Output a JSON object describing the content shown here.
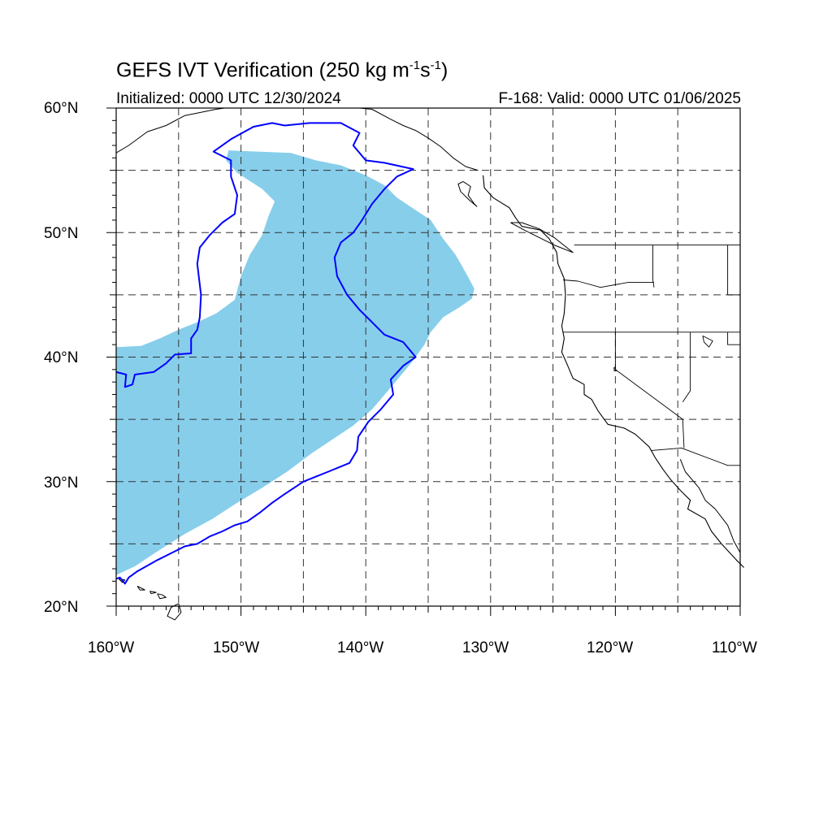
{
  "header": {
    "title_main": "GEFS IVT Verification (250 kg m",
    "title_sup1": "-1",
    "title_mid": "s",
    "title_sup2": "-1",
    "title_end": ")",
    "initialized": "Initialized: 0000 UTC 12/30/2024",
    "valid": "F-168: Valid: 0000 UTC 01/06/2025"
  },
  "axes": {
    "lat_labels": [
      "60°N",
      "50°N",
      "40°N",
      "30°N",
      "20°N"
    ],
    "lon_labels": [
      "160°W",
      "150°W",
      "140°W",
      "130°W",
      "120°W",
      "110°W"
    ]
  },
  "map_extent": {
    "lon_min": -160,
    "lon_max": -110,
    "lat_min": 20,
    "lat_max": 60,
    "grid_step": 5
  },
  "forecast_object": {
    "color": "#87ceeb",
    "outline": [
      [
        -151,
        56.6
      ],
      [
        -146,
        56.4
      ],
      [
        -144,
        55.8
      ],
      [
        -142,
        55.4
      ],
      [
        -140,
        54.6
      ],
      [
        -138.5,
        53.8
      ],
      [
        -137.5,
        52.8
      ],
      [
        -136.3,
        52
      ],
      [
        -134.8,
        51
      ],
      [
        -133.8,
        49.5
      ],
      [
        -132.8,
        48.2
      ],
      [
        -132,
        46.8
      ],
      [
        -131.3,
        45.5
      ],
      [
        -131.5,
        44.7
      ],
      [
        -132.5,
        44
      ],
      [
        -133.8,
        43.2
      ],
      [
        -134.8,
        42
      ],
      [
        -135.3,
        41
      ],
      [
        -136.3,
        39.6
      ],
      [
        -137.8,
        37.8
      ],
      [
        -139.5,
        35.8
      ],
      [
        -141,
        34.5
      ],
      [
        -142.5,
        33.5
      ],
      [
        -144.3,
        32.3
      ],
      [
        -146.3,
        30.8
      ],
      [
        -148.3,
        29.5
      ],
      [
        -150.3,
        28.3
      ],
      [
        -152.3,
        27
      ],
      [
        -154.5,
        25.8
      ],
      [
        -157,
        24.2
      ],
      [
        -158.5,
        23.2
      ],
      [
        -160,
        22.5
      ],
      [
        -160,
        40.8
      ],
      [
        -158,
        40.9
      ],
      [
        -156.5,
        41.5
      ],
      [
        -155,
        42.2
      ],
      [
        -153.5,
        42.8
      ],
      [
        -152,
        43.5
      ],
      [
        -150.5,
        44.6
      ],
      [
        -150,
        46.5
      ],
      [
        -149.3,
        48.2
      ],
      [
        -148.3,
        49.8
      ],
      [
        -147.8,
        51.3
      ],
      [
        -147.3,
        52.5
      ],
      [
        -148.3,
        53.5
      ],
      [
        -150.3,
        54.8
      ],
      [
        -151.2,
        55.8
      ]
    ]
  },
  "observed_object": {
    "color": "#0000ff",
    "outline": [
      [
        -160,
        38.8
      ],
      [
        -159.2,
        38.6
      ],
      [
        -159.3,
        37.6
      ],
      [
        -158.7,
        37.8
      ],
      [
        -158.5,
        38.6
      ],
      [
        -157,
        38.8
      ],
      [
        -156,
        39.5
      ],
      [
        -155.3,
        40.2
      ],
      [
        -154,
        40.3
      ],
      [
        -154,
        41.5
      ],
      [
        -153.5,
        42.2
      ],
      [
        -153.3,
        43.2
      ],
      [
        -153.2,
        45
      ],
      [
        -153.5,
        47.5
      ],
      [
        -153.3,
        48.8
      ],
      [
        -152.5,
        49.8
      ],
      [
        -151.5,
        50.8
      ],
      [
        -150.5,
        51.5
      ],
      [
        -150.3,
        53
      ],
      [
        -150.8,
        54.5
      ],
      [
        -150.8,
        55.8
      ],
      [
        -152.2,
        56.5
      ],
      [
        -150.8,
        57.5
      ],
      [
        -149,
        58.5
      ],
      [
        -147.5,
        58.8
      ],
      [
        -146.5,
        58.6
      ],
      [
        -144.5,
        58.8
      ],
      [
        -142,
        58.8
      ],
      [
        -140.5,
        58
      ],
      [
        -141,
        57
      ],
      [
        -140,
        55.8
      ],
      [
        -138.5,
        55.6
      ],
      [
        -136.2,
        55.1
      ],
      [
        -137.5,
        54.5
      ],
      [
        -138.5,
        53.5
      ],
      [
        -139.5,
        52.3
      ],
      [
        -140.3,
        51
      ],
      [
        -141,
        50
      ],
      [
        -142,
        49.2
      ],
      [
        -142.5,
        48
      ],
      [
        -142.3,
        46.5
      ],
      [
        -141.5,
        45
      ],
      [
        -140.5,
        43.8
      ],
      [
        -139.5,
        42.8
      ],
      [
        -138.5,
        41.8
      ],
      [
        -137,
        41.2
      ],
      [
        -136,
        40
      ],
      [
        -137,
        39.3
      ],
      [
        -138,
        38.2
      ],
      [
        -137.8,
        37
      ],
      [
        -138.8,
        35.8
      ],
      [
        -139.8,
        34.8
      ],
      [
        -140.6,
        33.6
      ],
      [
        -140.7,
        32.5
      ],
      [
        -141.3,
        31.5
      ],
      [
        -143,
        30.8
      ],
      [
        -145,
        30
      ],
      [
        -146.5,
        29
      ],
      [
        -147.5,
        28.3
      ],
      [
        -148.5,
        27.5
      ],
      [
        -149.5,
        26.8
      ],
      [
        -150.5,
        26.5
      ],
      [
        -151.5,
        26
      ],
      [
        -152.5,
        25.6
      ],
      [
        -153.5,
        25
      ],
      [
        -154.5,
        24.8
      ],
      [
        -155.5,
        24.3
      ],
      [
        -156.7,
        23.7
      ],
      [
        -158.3,
        22.8
      ],
      [
        -159,
        22.3
      ],
      [
        -159.3,
        21.8
      ],
      [
        -159.7,
        22.3
      ],
      [
        -160,
        22.2
      ]
    ]
  },
  "land_features": {
    "north_american_coast": [
      [
        -130.6,
        54.6
      ],
      [
        -130.5,
        53.6
      ],
      [
        -129.8,
        52.8
      ],
      [
        -128.5,
        52
      ],
      [
        -128,
        51.2
      ],
      [
        -127.5,
        50.5
      ],
      [
        -126,
        50.2
      ],
      [
        -125.3,
        49.5
      ],
      [
        -124.7,
        48.4
      ],
      [
        -124.6,
        47.5
      ],
      [
        -124.1,
        46.3
      ],
      [
        -124,
        45
      ],
      [
        -124.1,
        43.5
      ],
      [
        -124.3,
        42.5
      ],
      [
        -124.1,
        41.5
      ],
      [
        -124.3,
        40.4
      ],
      [
        -123.9,
        39.5
      ],
      [
        -123.4,
        38.3
      ],
      [
        -122.5,
        37.8
      ],
      [
        -122.5,
        37
      ],
      [
        -121.9,
        36.6
      ],
      [
        -121.4,
        35.7
      ],
      [
        -120.6,
        34.6
      ],
      [
        -119.3,
        34.3
      ],
      [
        -118.4,
        33.8
      ],
      [
        -117.3,
        32.8
      ],
      [
        -116.8,
        31.9
      ],
      [
        -116.2,
        31
      ],
      [
        -115.6,
        30.2
      ],
      [
        -114.8,
        29.3
      ],
      [
        -114,
        28.5
      ],
      [
        -114.2,
        27.8
      ],
      [
        -112.8,
        27
      ],
      [
        -112.3,
        26
      ],
      [
        -111.5,
        25
      ],
      [
        -110.3,
        23.7
      ],
      [
        -109.7,
        23.1
      ]
    ],
    "gulf_of_california_coast": [
      [
        -114.8,
        31.8
      ],
      [
        -114.4,
        30.8
      ],
      [
        -113.3,
        29.5
      ],
      [
        -112.8,
        28.5
      ],
      [
        -112,
        27.8
      ],
      [
        -111,
        26.5
      ],
      [
        -110.5,
        25.2
      ],
      [
        -110,
        24.3
      ]
    ],
    "alaska_coast": [
      [
        -160,
        56.4
      ],
      [
        -159,
        57
      ],
      [
        -157.5,
        58.1
      ],
      [
        -156,
        58.6
      ],
      [
        -154.5,
        59.4
      ],
      [
        -153,
        59.7
      ],
      [
        -152,
        59.9
      ],
      [
        -151.3,
        60
      ]
    ],
    "alaska_coast_east": [
      [
        -140.5,
        60
      ],
      [
        -139.5,
        59.9
      ],
      [
        -138,
        59.1
      ],
      [
        -137,
        58.6
      ],
      [
        -136,
        58.2
      ],
      [
        -135,
        57.6
      ],
      [
        -134,
        56.9
      ],
      [
        -133,
        56
      ],
      [
        -132,
        55.3
      ],
      [
        -131,
        55
      ]
    ],
    "haida_gwaii": [
      [
        -132.2,
        54.1
      ],
      [
        -131.6,
        53.7
      ],
      [
        -131.8,
        53
      ],
      [
        -131.3,
        52.3
      ],
      [
        -131.1,
        52.1
      ],
      [
        -131.7,
        52.6
      ],
      [
        -132.4,
        53.3
      ],
      [
        -132.6,
        53.9
      ],
      [
        -132.2,
        54.1
      ]
    ],
    "vancouver_island": [
      [
        -128.4,
        50.8
      ],
      [
        -127.3,
        50.2
      ],
      [
        -125.9,
        49.5
      ],
      [
        -124.9,
        49
      ],
      [
        -123.4,
        48.4
      ],
      [
        -123.9,
        48.8
      ],
      [
        -124.9,
        49.6
      ],
      [
        -126.1,
        50.3
      ],
      [
        -127.5,
        50.8
      ],
      [
        -128.4,
        50.8
      ]
    ],
    "hawaii_islands": [
      [
        [
          -155,
          20.2
        ],
        [
          -155.6,
          19.9
        ],
        [
          -155.9,
          19.2
        ],
        [
          -155.3,
          18.9
        ],
        [
          -154.8,
          19.5
        ],
        [
          -155,
          20.2
        ]
      ],
      [
        [
          -156.7,
          21
        ],
        [
          -156.3,
          20.9
        ],
        [
          -156,
          20.7
        ],
        [
          -156.5,
          20.6
        ],
        [
          -156.7,
          21
        ]
      ],
      [
        [
          -158.3,
          21.6
        ],
        [
          -157.7,
          21.3
        ],
        [
          -158.1,
          21.3
        ],
        [
          -158.3,
          21.6
        ]
      ],
      [
        [
          -159.8,
          22.2
        ],
        [
          -159.3,
          22.1
        ],
        [
          -159.5,
          21.9
        ],
        [
          -159.8,
          22.2
        ]
      ],
      [
        [
          -157.3,
          21.2
        ],
        [
          -156.8,
          21.1
        ],
        [
          -157.2,
          21
        ],
        [
          -157.3,
          21.2
        ]
      ]
    ],
    "borders": [
      [
        [
          -123.3,
          49
        ],
        [
          -110,
          49
        ]
      ],
      [
        [
          -117,
          49
        ],
        [
          -117,
          46.2
        ],
        [
          -116.9,
          45.6
        ]
      ],
      [
        [
          -124.2,
          46.2
        ],
        [
          -123,
          46.1
        ],
        [
          -121.2,
          45.6
        ],
        [
          -119,
          46
        ],
        [
          -116.9,
          46
        ]
      ],
      [
        [
          -124.2,
          42
        ],
        [
          -110,
          42
        ]
      ],
      [
        [
          -120,
          42
        ],
        [
          -120,
          39
        ],
        [
          -114.6,
          35
        ],
        [
          -114.5,
          32.7
        ]
      ],
      [
        [
          -114,
          42
        ],
        [
          -114,
          37.3
        ],
        [
          -114.6,
          36.4
        ]
      ],
      [
        [
          -111,
          42
        ],
        [
          -111,
          41
        ],
        [
          -110,
          41
        ]
      ],
      [
        [
          -111,
          45
        ],
        [
          -110,
          45
        ]
      ],
      [
        [
          -111,
          45
        ],
        [
          -111,
          49
        ]
      ],
      [
        [
          -117.1,
          32.5
        ],
        [
          -114.7,
          32.7
        ],
        [
          -111,
          31.3
        ],
        [
          -110,
          31.3
        ]
      ]
    ],
    "lakes": [
      [
        [
          -113,
          41.7
        ],
        [
          -112.2,
          41.3
        ],
        [
          -112.5,
          40.8
        ],
        [
          -112.9,
          41.2
        ],
        [
          -113,
          41.7
        ]
      ],
      [
        [
          -120.1,
          39.2
        ],
        [
          -119.9,
          38.9
        ],
        [
          -120.1,
          38.9
        ],
        [
          -120.1,
          39.2
        ]
      ]
    ]
  }
}
